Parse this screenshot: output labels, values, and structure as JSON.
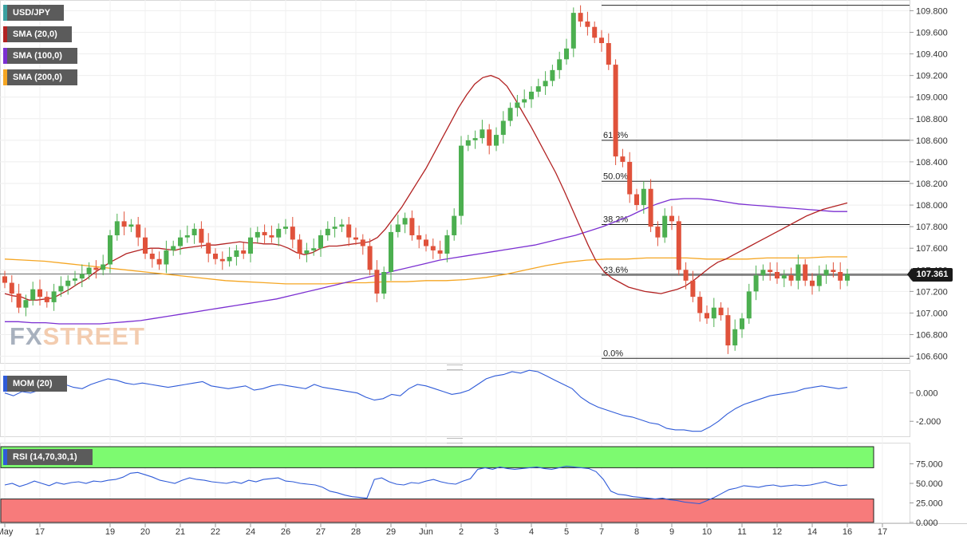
{
  "chart_data": {
    "type": "candlestick",
    "symbol": "USD/JPY",
    "last_price": "107.361",
    "watermark": {
      "first": "FX",
      "second": "STREET"
    },
    "colors": {
      "up": "#4caf50",
      "down": "#e0523b",
      "sma20": "#b22222",
      "sma100": "#7b2fd1",
      "sma200": "#f5a623",
      "momentum": "#2f5bd8",
      "rsi": "#2f5bd8",
      "rsi_overbought": "#7dfa70",
      "rsi_oversold": "#f77b7b"
    },
    "indicators": [
      {
        "label": "USD/JPY",
        "color": "#4caf50"
      },
      {
        "label": "SMA (20,0)",
        "color": "#b22222"
      },
      {
        "label": "SMA (100,0)",
        "color": "#7b2fd1"
      },
      {
        "label": "SMA (200,0)",
        "color": "#f5a623"
      }
    ],
    "price_axis": {
      "min": 106.5,
      "max": 109.85,
      "ticks": [
        "109.800",
        "109.600",
        "109.400",
        "109.200",
        "109.000",
        "108.800",
        "108.600",
        "108.400",
        "108.200",
        "108.000",
        "107.800",
        "107.600",
        "107.400",
        "107.200",
        "107.000",
        "106.800",
        "106.600"
      ]
    },
    "x_axis": {
      "labels": [
        {
          "text": "May",
          "bar": 0
        },
        {
          "text": "17",
          "bar": 5
        },
        {
          "text": "19",
          "bar": 15
        },
        {
          "text": "20",
          "bar": 20
        },
        {
          "text": "21",
          "bar": 25
        },
        {
          "text": "22",
          "bar": 30
        },
        {
          "text": "24",
          "bar": 35
        },
        {
          "text": "26",
          "bar": 40
        },
        {
          "text": "27",
          "bar": 45
        },
        {
          "text": "28",
          "bar": 50
        },
        {
          "text": "29",
          "bar": 55
        },
        {
          "text": "Jun",
          "bar": 60
        },
        {
          "text": "2",
          "bar": 65
        },
        {
          "text": "3",
          "bar": 70
        },
        {
          "text": "4",
          "bar": 75
        },
        {
          "text": "5",
          "bar": 80
        },
        {
          "text": "7",
          "bar": 85
        },
        {
          "text": "8",
          "bar": 90
        },
        {
          "text": "9",
          "bar": 95
        },
        {
          "text": "10",
          "bar": 100
        },
        {
          "text": "11",
          "bar": 105
        },
        {
          "text": "12",
          "bar": 110
        },
        {
          "text": "14",
          "bar": 115
        },
        {
          "text": "16",
          "bar": 120
        },
        {
          "text": "17",
          "bar": 125
        }
      ]
    },
    "fibonacci": [
      {
        "label": "61.8%",
        "value": 108.6
      },
      {
        "label": "50.0%",
        "value": 108.22
      },
      {
        "label": "38.2%",
        "value": 107.82
      },
      {
        "label": "23.6%",
        "value": 107.35
      },
      {
        "label": "0.0%",
        "value": 106.58
      }
    ],
    "swing_high": 109.85,
    "current_price": 107.361,
    "closes": [
      107.28,
      107.18,
      107.05,
      107.12,
      107.22,
      107.15,
      107.1,
      107.2,
      107.25,
      107.3,
      107.32,
      107.36,
      107.42,
      107.4,
      107.45,
      107.72,
      107.85,
      107.8,
      107.82,
      107.7,
      107.55,
      107.5,
      107.45,
      107.58,
      107.62,
      107.7,
      107.72,
      107.78,
      107.65,
      107.55,
      107.5,
      107.48,
      107.52,
      107.58,
      107.55,
      107.7,
      107.75,
      107.72,
      107.7,
      107.78,
      107.8,
      107.68,
      107.55,
      107.58,
      107.6,
      107.72,
      107.78,
      107.8,
      107.82,
      107.7,
      107.68,
      107.62,
      107.4,
      107.18,
      107.38,
      107.75,
      107.82,
      107.88,
      107.72,
      107.68,
      107.62,
      107.58,
      107.55,
      107.72,
      107.9,
      108.55,
      108.6,
      108.62,
      108.7,
      108.55,
      108.65,
      108.78,
      108.9,
      108.95,
      108.98,
      109.05,
      109.1,
      109.15,
      109.25,
      109.35,
      109.45,
      109.78,
      109.7,
      109.65,
      109.55,
      109.5,
      109.3,
      108.45,
      108.4,
      108.1,
      108.0,
      108.15,
      107.8,
      107.7,
      107.9,
      107.85,
      107.4,
      107.3,
      107.15,
      107.0,
      106.95,
      107.05,
      106.98,
      106.7,
      106.85,
      106.95,
      107.2,
      107.35,
      107.4,
      107.38,
      107.32,
      107.35,
      107.3,
      107.45,
      107.3,
      107.25,
      107.35,
      107.4,
      107.38,
      107.3,
      107.36
    ],
    "sma20": [
      107.18,
      107.16,
      107.15,
      107.12,
      107.12,
      107.13,
      107.14,
      107.18,
      107.22,
      107.27,
      107.31,
      107.37,
      107.42,
      107.47,
      107.51,
      107.55,
      107.57,
      107.59,
      107.6,
      107.6,
      107.59,
      107.58,
      107.6,
      107.61,
      107.62,
      107.63,
      107.63,
      107.64,
      107.65,
      107.66,
      107.65,
      107.65,
      107.64,
      107.64,
      107.63,
      107.6,
      107.56,
      107.54,
      107.56,
      107.6,
      107.62,
      107.62,
      107.63,
      107.64,
      107.65,
      107.66,
      107.7,
      107.78,
      107.88,
      107.98,
      108.1,
      108.22,
      108.34,
      108.48,
      108.62,
      108.76,
      108.9,
      109.02,
      109.12,
      109.18,
      109.2,
      109.17,
      109.1,
      108.98,
      108.85,
      108.72,
      108.58,
      108.44,
      108.3,
      108.14,
      107.97,
      107.8,
      107.63,
      107.48,
      107.38,
      107.32,
      107.28,
      107.24,
      107.22,
      107.2,
      107.19,
      107.18,
      107.2,
      107.22,
      107.25,
      107.3,
      107.36,
      107.42,
      107.47,
      107.5,
      107.54,
      107.58,
      107.62,
      107.66,
      107.7,
      107.74,
      107.78,
      107.82,
      107.86,
      107.9,
      107.93,
      107.96,
      107.98,
      108.0,
      108.02
    ],
    "sma20_start": 0,
    "sma100": [
      106.92,
      106.92,
      106.91,
      106.91,
      106.9,
      106.9,
      106.9,
      106.9,
      106.91,
      106.92,
      106.93,
      106.95,
      106.97,
      106.99,
      107.01,
      107.03,
      107.05,
      107.07,
      107.09,
      107.11,
      107.13,
      107.16,
      107.19,
      107.22,
      107.25,
      107.28,
      107.31,
      107.34,
      107.37,
      107.4,
      107.43,
      107.46,
      107.49,
      107.51,
      107.53,
      107.55,
      107.57,
      107.59,
      107.61,
      107.63,
      107.66,
      107.69,
      107.72,
      107.76,
      107.8,
      107.85,
      107.9,
      107.96,
      108.01,
      108.05,
      108.06,
      108.06,
      108.05,
      108.03,
      108.01,
      108.0,
      107.99,
      107.98,
      107.97,
      107.96,
      107.95,
      107.94,
      107.94
    ],
    "sma100_start": 0,
    "sma200": [
      107.5,
      107.49,
      107.48,
      107.46,
      107.44,
      107.42,
      107.4,
      107.38,
      107.36,
      107.34,
      107.32,
      107.3,
      107.29,
      107.28,
      107.27,
      107.27,
      107.27,
      107.28,
      107.28,
      107.29,
      107.29,
      107.3,
      107.3,
      107.31,
      107.33,
      107.36,
      107.4,
      107.44,
      107.47,
      107.49,
      107.5,
      107.5,
      107.51,
      107.51,
      107.51,
      107.5,
      107.5,
      107.5,
      107.51,
      107.51,
      107.51,
      107.52,
      107.52
    ],
    "momentum": {
      "label": "MOM (20)",
      "ticks": [
        "0.000",
        "-2.000"
      ],
      "range": [
        -3.0,
        1.5
      ],
      "values": [
        0.0,
        -0.2,
        0.1,
        0.0,
        0.2,
        0.3,
        0.3,
        0.6,
        0.4,
        0.3,
        0.6,
        0.8,
        1.0,
        0.9,
        0.7,
        0.6,
        0.7,
        0.6,
        0.5,
        0.4,
        0.5,
        0.6,
        0.7,
        0.8,
        0.5,
        0.4,
        0.3,
        0.4,
        0.5,
        0.2,
        0.3,
        0.5,
        0.6,
        0.5,
        0.4,
        0.3,
        0.6,
        0.4,
        0.3,
        0.2,
        0.1,
        0.0,
        -0.3,
        -0.5,
        -0.4,
        -0.1,
        -0.2,
        0.3,
        0.6,
        0.5,
        0.3,
        0.1,
        -0.1,
        0.0,
        0.2,
        0.6,
        1.0,
        1.2,
        1.3,
        1.5,
        1.4,
        1.6,
        1.5,
        1.2,
        0.9,
        0.6,
        0.3,
        -0.3,
        -0.7,
        -1.0,
        -1.2,
        -1.4,
        -1.6,
        -1.7,
        -1.9,
        -2.1,
        -2.2,
        -2.5,
        -2.6,
        -2.6,
        -2.7,
        -2.7,
        -2.4,
        -2.0,
        -1.5,
        -1.1,
        -0.8,
        -0.6,
        -0.4,
        -0.2,
        -0.1,
        0.0,
        0.1,
        0.3,
        0.4,
        0.5,
        0.4,
        0.3,
        0.4
      ]
    },
    "rsi": {
      "label": "RSI (14,70,30,1)",
      "ticks": [
        "75.000",
        "50.000",
        "25.000",
        "0.000"
      ],
      "overbought": 70,
      "oversold": 30,
      "range": [
        0,
        100
      ],
      "values": [
        48,
        50,
        46,
        49,
        53,
        50,
        47,
        51,
        49,
        51,
        52,
        50,
        53,
        52,
        54,
        55,
        58,
        63,
        64,
        61,
        58,
        54,
        52,
        50,
        54,
        57,
        55,
        54,
        52,
        51,
        50,
        52,
        50,
        54,
        52,
        55,
        56,
        57,
        53,
        52,
        50,
        49,
        48,
        45,
        40,
        38,
        35,
        33,
        32,
        31,
        55,
        57,
        52,
        49,
        48,
        51,
        50,
        53,
        55,
        52,
        50,
        49,
        53,
        56,
        68,
        70,
        68,
        71,
        69,
        68,
        69,
        70,
        71,
        69,
        68,
        70,
        72,
        71,
        70,
        69,
        65,
        55,
        40,
        36,
        35,
        33,
        32,
        31,
        30,
        31,
        29,
        28,
        26,
        25,
        24,
        28,
        32,
        37,
        42,
        44,
        47,
        46,
        45,
        47,
        48,
        46,
        47,
        48,
        47,
        48,
        50,
        52,
        49,
        47,
        48
      ]
    }
  }
}
